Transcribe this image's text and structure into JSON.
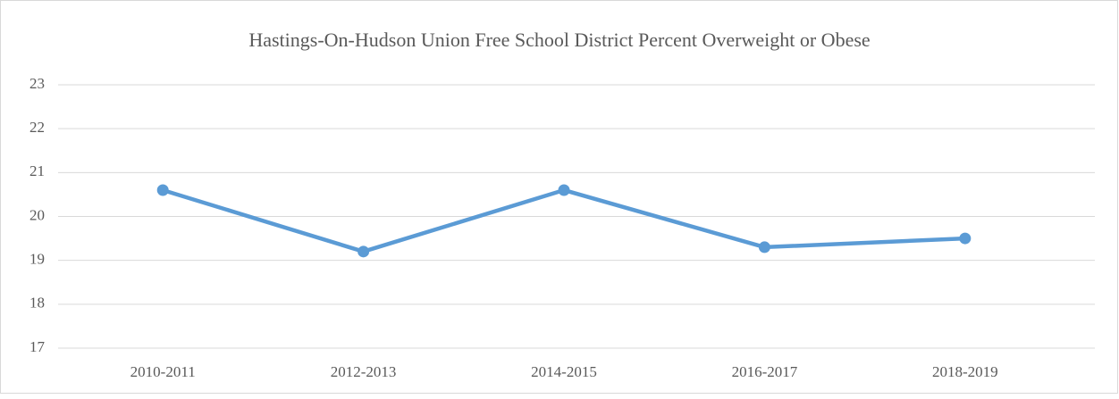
{
  "chart_data": {
    "type": "line",
    "title": "Hastings-On-Hudson Union Free School District Percent Overweight or Obese",
    "categories": [
      "2010-2011",
      "2012-2013",
      "2014-2015",
      "2016-2017",
      "2018-2019"
    ],
    "series": [
      {
        "name": "Percent Overweight or Obese",
        "color": "#5b9bd5",
        "values": [
          20.6,
          19.2,
          20.6,
          19.3,
          19.5
        ]
      }
    ],
    "ylim": [
      17,
      23
    ],
    "yticks": [
      17,
      18,
      19,
      20,
      21,
      22,
      23
    ],
    "grid": true
  }
}
